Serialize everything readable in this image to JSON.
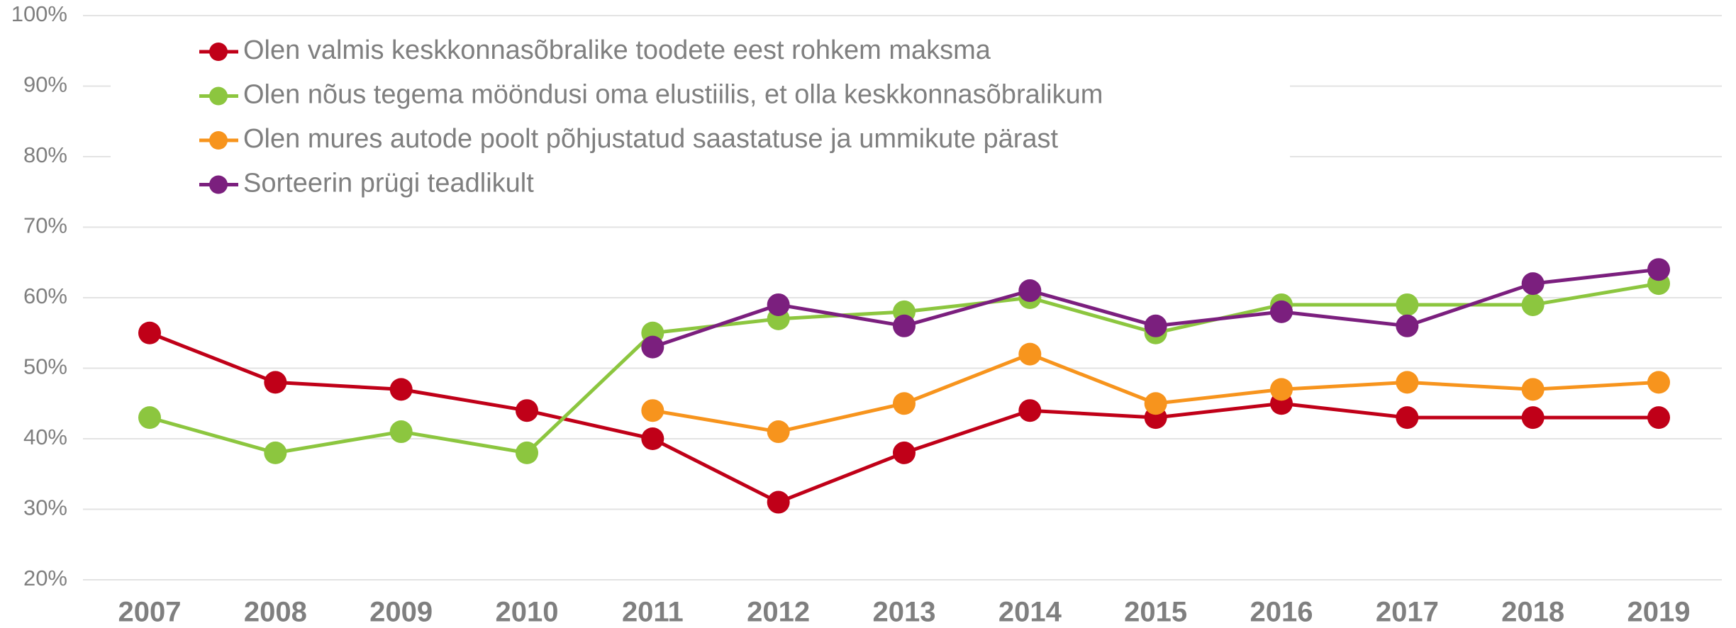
{
  "chart_data": {
    "type": "line",
    "categories": [
      "2007",
      "2008",
      "2009",
      "2010",
      "2011",
      "2012",
      "2013",
      "2014",
      "2015",
      "2016",
      "2017",
      "2018",
      "2019"
    ],
    "series": [
      {
        "name": "Olen valmis keskkonnasõbralike toodete eest rohkem maksma",
        "color": "#c00018",
        "values": [
          55,
          48,
          47,
          44,
          40,
          31,
          38,
          44,
          43,
          45,
          43,
          43,
          43
        ]
      },
      {
        "name": "Olen nõus tegema möönd­usi oma elustiilis, et olla keskkonnasõbralikum",
        "color": "#8cc63f",
        "values": [
          43,
          38,
          41,
          38,
          55,
          57,
          58,
          60,
          55,
          59,
          59,
          59,
          62
        ]
      },
      {
        "name": "Olen mures autode poolt põhjustatud saastatuse ja ummikute pärast",
        "color": "#f7941d",
        "values": [
          null,
          null,
          null,
          null,
          44,
          41,
          45,
          52,
          45,
          47,
          48,
          47,
          48
        ]
      },
      {
        "name": "Sorteerin prügi teadlikult",
        "color": "#7b1f7e",
        "values": [
          null,
          null,
          null,
          null,
          53,
          59,
          56,
          61,
          56,
          58,
          56,
          62,
          64
        ]
      }
    ],
    "ylim": [
      20,
      100
    ],
    "yticks": [
      {
        "value": 20,
        "label": "20%"
      },
      {
        "value": 30,
        "label": "30%"
      },
      {
        "value": 40,
        "label": "40%"
      },
      {
        "value": 50,
        "label": "50%"
      },
      {
        "value": 60,
        "label": "60%"
      },
      {
        "value": 70,
        "label": "70%"
      },
      {
        "value": 80,
        "label": "80%"
      },
      {
        "value": 90,
        "label": "90%"
      },
      {
        "value": 100,
        "label": "100%"
      }
    ],
    "grid": true
  }
}
